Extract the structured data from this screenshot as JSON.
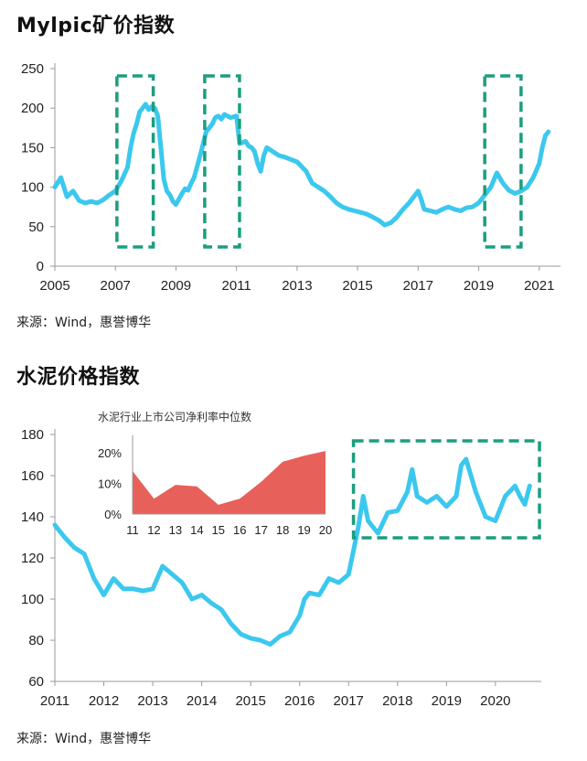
{
  "charts": {
    "mylpic": {
      "title": "Mylpic矿价指数",
      "source": "来源：Wind，惠誉博华"
    },
    "cement": {
      "title": "水泥价格指数",
      "source": "来源：Wind，惠誉博华"
    }
  },
  "colors": {
    "line": "#3cc8ee",
    "highlight": "#1a9e7e",
    "bar": "#e8605a",
    "axis": "#999999"
  },
  "chart_data": [
    {
      "type": "line",
      "title": "Mylpic矿价指数",
      "xlabel": "",
      "ylabel": "",
      "xlim": [
        2005,
        2021.4
      ],
      "ylim": [
        0,
        250
      ],
      "y_ticks": [
        0,
        50,
        100,
        150,
        200,
        250
      ],
      "x_ticks": [
        "2005",
        "2007",
        "2009",
        "2011",
        "2013",
        "2015",
        "2017",
        "2019",
        "2021"
      ],
      "grid": false,
      "highlights": [
        [
          2007.05,
          2008.25
        ],
        [
          2009.95,
          2011.1
        ],
        [
          2019.2,
          2020.4
        ]
      ],
      "series": [
        {
          "x": [
            2005.0,
            2005.2,
            2005.4,
            2005.6,
            2005.8,
            2006.0,
            2006.2,
            2006.4,
            2006.6,
            2006.8,
            2007.0,
            2007.2,
            2007.4,
            2007.5,
            2007.6,
            2007.7,
            2007.8,
            2007.9,
            2008.0,
            2008.1,
            2008.2,
            2008.3,
            2008.4,
            2008.5,
            2008.6,
            2008.7,
            2008.8,
            2008.9,
            2009.0,
            2009.1,
            2009.2,
            2009.3,
            2009.4,
            2009.5,
            2009.6,
            2009.8,
            2009.9,
            2010.0,
            2010.1,
            2010.2,
            2010.3,
            2010.4,
            2010.5,
            2010.6,
            2010.8,
            2011.0,
            2011.1,
            2011.3,
            2011.4,
            2011.5,
            2011.6,
            2011.7,
            2011.8,
            2011.9,
            2012.0,
            2012.2,
            2012.4,
            2012.6,
            2012.8,
            2013.0,
            2013.1,
            2013.3,
            2013.5,
            2013.7,
            2013.9,
            2014.1,
            2014.3,
            2014.5,
            2014.7,
            2014.9,
            2015.1,
            2015.3,
            2015.5,
            2015.7,
            2015.9,
            2016.1,
            2016.3,
            2016.5,
            2016.7,
            2016.9,
            2017.0,
            2017.1,
            2017.2,
            2017.4,
            2017.6,
            2017.8,
            2018.0,
            2018.2,
            2018.4,
            2018.6,
            2018.8,
            2019.0,
            2019.2,
            2019.4,
            2019.6,
            2019.8,
            2020.0,
            2020.2,
            2020.4,
            2020.6,
            2020.8,
            2021.0,
            2021.1,
            2021.2,
            2021.3
          ],
          "y": [
            100,
            112,
            88,
            95,
            83,
            80,
            82,
            80,
            84,
            90,
            95,
            108,
            125,
            150,
            168,
            180,
            195,
            200,
            205,
            198,
            202,
            200,
            190,
            150,
            110,
            95,
            90,
            82,
            78,
            85,
            92,
            98,
            96,
            105,
            112,
            140,
            155,
            170,
            175,
            180,
            188,
            190,
            186,
            192,
            188,
            190,
            155,
            158,
            152,
            150,
            145,
            130,
            120,
            140,
            150,
            145,
            140,
            138,
            135,
            132,
            128,
            120,
            105,
            100,
            95,
            88,
            80,
            75,
            72,
            70,
            68,
            66,
            62,
            58,
            52,
            55,
            62,
            72,
            80,
            90,
            95,
            85,
            72,
            70,
            68,
            72,
            75,
            72,
            70,
            74,
            75,
            80,
            90,
            100,
            118,
            105,
            96,
            92,
            95,
            100,
            112,
            130,
            150,
            165,
            170
          ]
        }
      ]
    },
    {
      "type": "line",
      "title": "水泥价格指数",
      "xlabel": "",
      "ylabel": "",
      "xlim": [
        2011,
        2020.75
      ],
      "ylim": [
        60,
        180
      ],
      "y_ticks": [
        60,
        80,
        100,
        120,
        140,
        160,
        180
      ],
      "x_ticks": [
        "2011",
        "2012",
        "2013",
        "2014",
        "2015",
        "2016",
        "2017",
        "2018",
        "2019",
        "2020"
      ],
      "grid": false,
      "highlights": [
        [
          2017.1,
          2020.9
        ]
      ],
      "series": [
        {
          "x": [
            2011.0,
            2011.2,
            2011.4,
            2011.6,
            2011.8,
            2012.0,
            2012.2,
            2012.4,
            2012.6,
            2012.8,
            2013.0,
            2013.2,
            2013.4,
            2013.6,
            2013.8,
            2014.0,
            2014.2,
            2014.4,
            2014.6,
            2014.8,
            2015.0,
            2015.2,
            2015.4,
            2015.6,
            2015.8,
            2016.0,
            2016.1,
            2016.2,
            2016.4,
            2016.6,
            2016.8,
            2017.0,
            2017.2,
            2017.3,
            2017.4,
            2017.6,
            2017.8,
            2018.0,
            2018.2,
            2018.3,
            2018.4,
            2018.6,
            2018.8,
            2019.0,
            2019.2,
            2019.3,
            2019.4,
            2019.6,
            2019.8,
            2020.0,
            2020.2,
            2020.4,
            2020.5,
            2020.6,
            2020.7
          ],
          "y": [
            136,
            130,
            125,
            122,
            110,
            102,
            110,
            105,
            105,
            104,
            105,
            116,
            112,
            108,
            100,
            102,
            98,
            95,
            88,
            83,
            81,
            80,
            78,
            82,
            84,
            92,
            100,
            103,
            102,
            110,
            108,
            112,
            135,
            150,
            138,
            132,
            142,
            143,
            152,
            163,
            150,
            147,
            150,
            145,
            150,
            165,
            168,
            152,
            140,
            138,
            150,
            155,
            150,
            146,
            155
          ]
        }
      ]
    },
    {
      "type": "area",
      "title": "水泥行业上市公司净利率中位数",
      "xlabel": "",
      "ylabel": "",
      "categories": [
        "11",
        "12",
        "13",
        "14",
        "15",
        "16",
        "17",
        "18",
        "19",
        "20"
      ],
      "values": [
        0.14,
        0.05,
        0.095,
        0.09,
        0.03,
        0.05,
        0.105,
        0.17,
        0.19,
        0.205
      ],
      "ylim": [
        0,
        0.25
      ],
      "y_ticks": [
        "0%",
        "10%",
        "20%"
      ],
      "grid": false
    }
  ]
}
